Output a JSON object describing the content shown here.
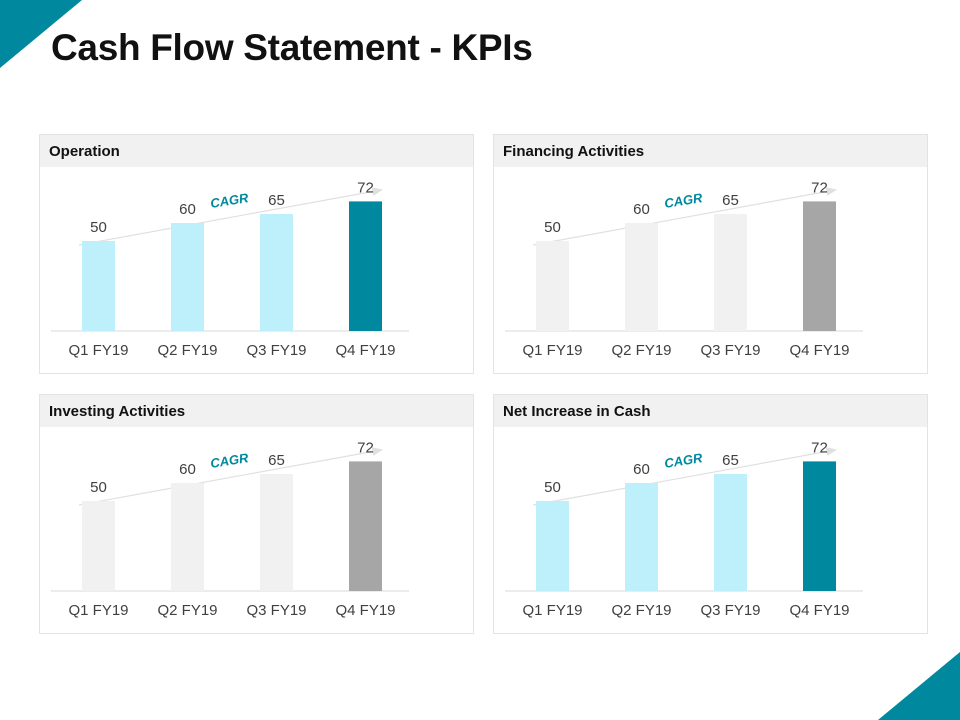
{
  "title": "Cash Flow Statement - KPIs",
  "colors": {
    "accent": "#00899e",
    "light_blue": "#bdf0fb",
    "light_gray": "#f1f1f1",
    "mid_gray": "#a6a6a6",
    "axis": "#d9d9d9",
    "text": "#404040"
  },
  "chart_data": [
    {
      "type": "bar",
      "title": "Operation",
      "categories": [
        "Q1 FY19",
        "Q2 FY19",
        "Q3 FY19",
        "Q4 FY19"
      ],
      "values": [
        50,
        60,
        65,
        72
      ],
      "bar_colors": [
        "#bdf0fb",
        "#bdf0fb",
        "#bdf0fb",
        "#00899e"
      ],
      "annotation": "CAGR",
      "ylim": [
        0,
        100
      ],
      "grid": false,
      "legend": "none"
    },
    {
      "type": "bar",
      "title": "Financing Activities",
      "categories": [
        "Q1 FY19",
        "Q2 FY19",
        "Q3 FY19",
        "Q4 FY19"
      ],
      "values": [
        50,
        60,
        65,
        72
      ],
      "bar_colors": [
        "#f1f1f1",
        "#f1f1f1",
        "#f1f1f1",
        "#a6a6a6"
      ],
      "annotation": "CAGR",
      "ylim": [
        0,
        100
      ],
      "grid": false,
      "legend": "none"
    },
    {
      "type": "bar",
      "title": "Investing Activities",
      "categories": [
        "Q1 FY19",
        "Q2 FY19",
        "Q3 FY19",
        "Q4 FY19"
      ],
      "values": [
        50,
        60,
        65,
        72
      ],
      "bar_colors": [
        "#f1f1f1",
        "#f1f1f1",
        "#f1f1f1",
        "#a6a6a6"
      ],
      "annotation": "CAGR",
      "ylim": [
        0,
        100
      ],
      "grid": false,
      "legend": "none"
    },
    {
      "type": "bar",
      "title": "Net Increase in Cash",
      "categories": [
        "Q1 FY19",
        "Q2 FY19",
        "Q3 FY19",
        "Q4 FY19"
      ],
      "values": [
        50,
        60,
        65,
        72
      ],
      "bar_colors": [
        "#bdf0fb",
        "#bdf0fb",
        "#bdf0fb",
        "#00899e"
      ],
      "annotation": "CAGR",
      "ylim": [
        0,
        100
      ],
      "grid": false,
      "legend": "none"
    }
  ]
}
